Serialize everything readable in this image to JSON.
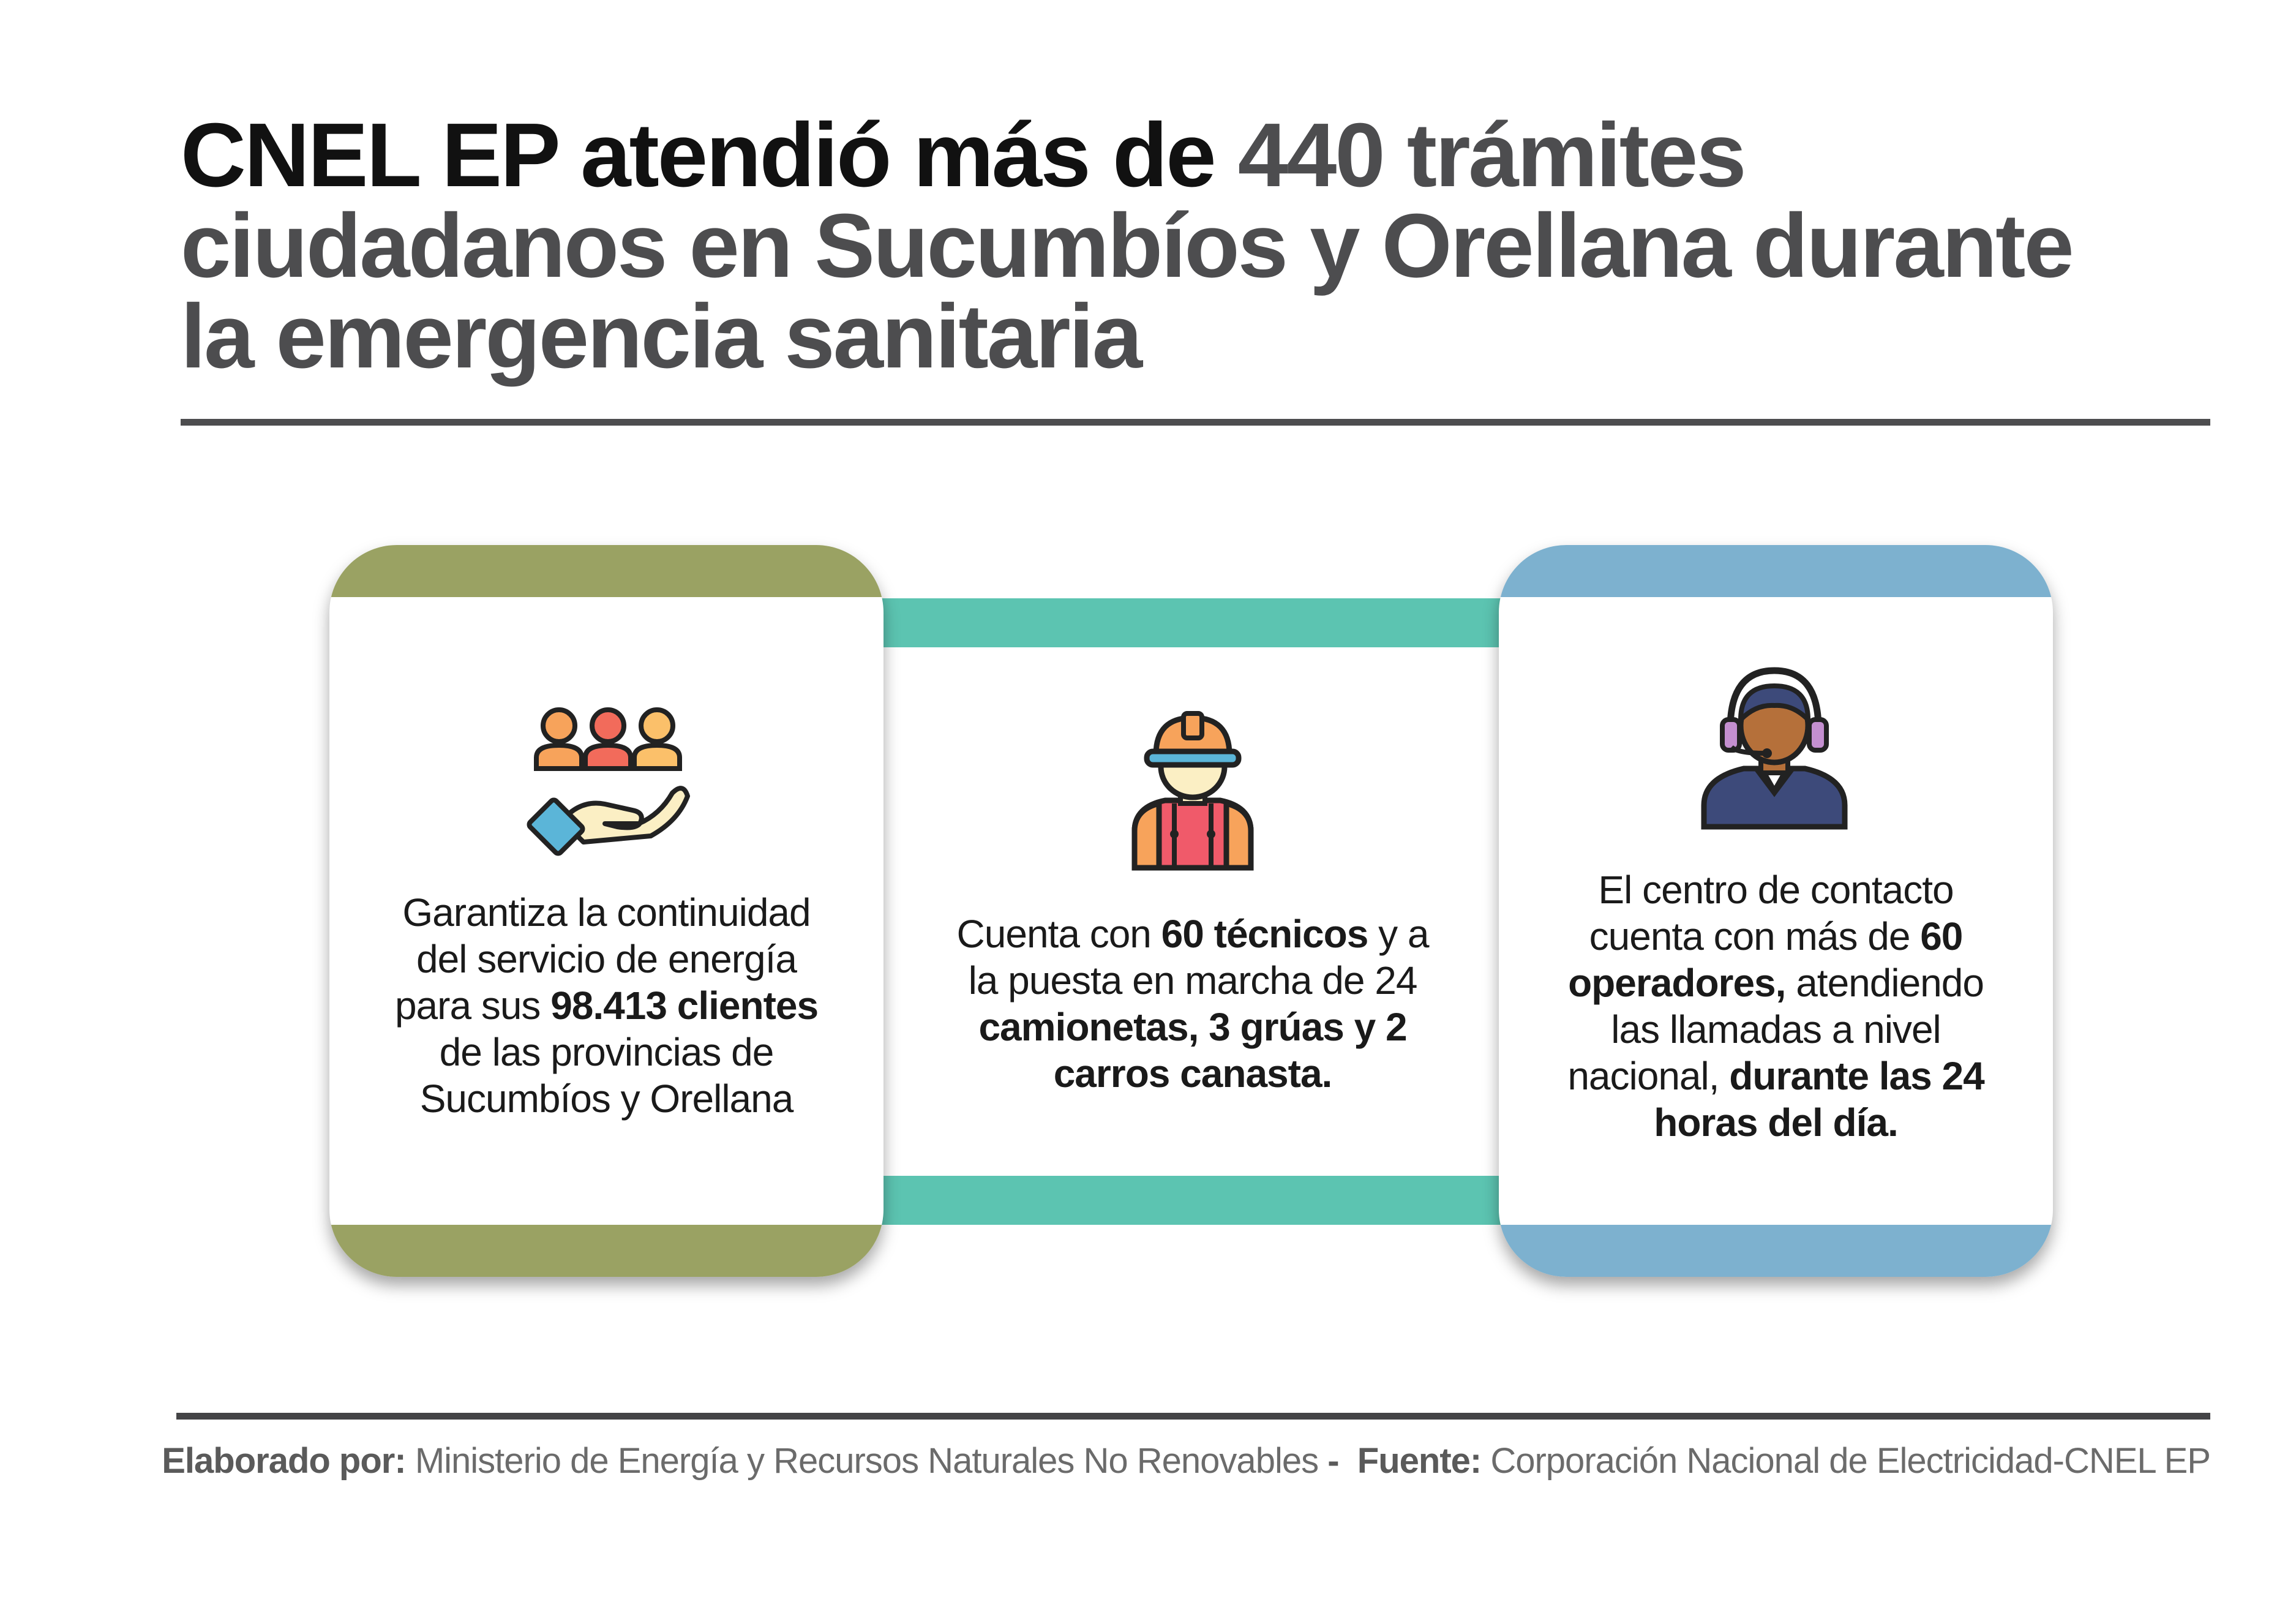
{
  "headline": {
    "part1": "CNEL EP atendió más de",
    "part2": "440  trámites",
    "line2": "ciudadanos en Sucumbíos y Orellana durante",
    "line3": "la emergencia sanitaria"
  },
  "cards": [
    {
      "icon": "people-in-hand-icon",
      "text_pre": "Garantiza la continuidad del servicio de energía para sus ",
      "text_bold": "98.413 clientes",
      "text_post": " de las provincias de Sucumbíos y Orellana"
    },
    {
      "icon": "worker-hardhat-icon",
      "text_a": "Cuenta con ",
      "text_b": "60 técnicos",
      "text_c": " y a la puesta en marcha de 24 ",
      "text_d": "camionetas, 3 grúas y 2 carros canasta."
    },
    {
      "icon": "call-center-operator-icon",
      "text_a": "El centro de contacto cuenta con más de ",
      "text_b": "60 operadores,",
      "text_c": " atendiendo las llamadas a nivel nacional, ",
      "text_d": "durante las 24 horas del día."
    }
  ],
  "footer": {
    "label1": "Elaborado por:",
    "value1": "Ministerio de Energía y Recursos Naturales No Renovables",
    "separator": "-",
    "label2": "Fuente:",
    "value2": "Corporación Nacional de Electricidad-CNEL EP"
  },
  "colors": {
    "olive": "#9aa263",
    "teal": "#5cc4b1",
    "blue": "#7db1cf",
    "headline_gray": "#4d4d4f"
  }
}
